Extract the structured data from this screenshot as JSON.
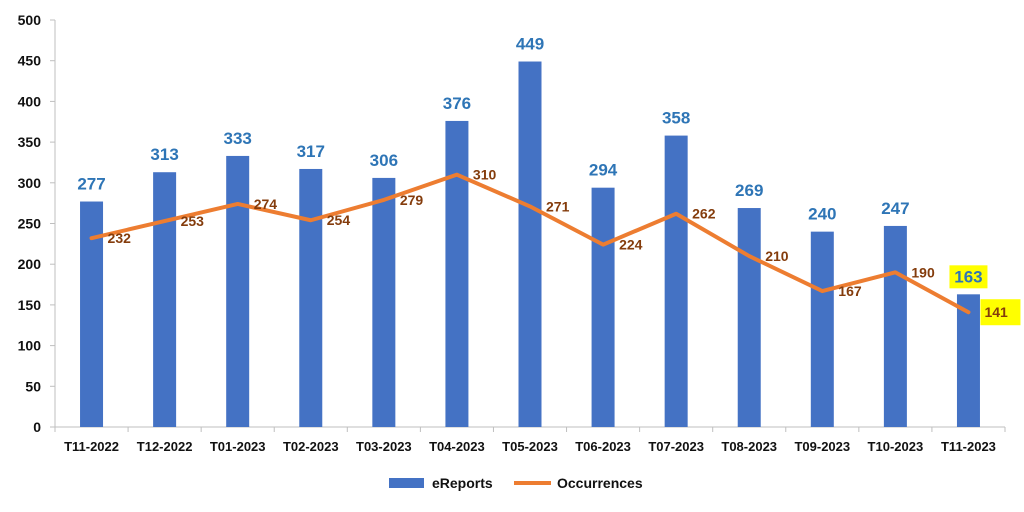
{
  "chart_data": {
    "type": "bar",
    "title": "",
    "xlabel": "",
    "ylabel": "",
    "ylim": [
      0,
      500
    ],
    "yticks": [
      0,
      50,
      100,
      150,
      200,
      250,
      300,
      350,
      400,
      450,
      500
    ],
    "grid": false,
    "legend_position": "bottom",
    "categories": [
      "T11-2022",
      "T12-2022",
      "T01-2023",
      "T02-2023",
      "T03-2023",
      "T04-2023",
      "T05-2023",
      "T06-2023",
      "T07-2023",
      "T08-2023",
      "T09-2023",
      "T10-2023",
      "T11-2023"
    ],
    "series": [
      {
        "name": "eReports",
        "type": "bar",
        "color": "#4472C4",
        "label_color": "#2E75B6",
        "values": [
          277,
          313,
          333,
          317,
          306,
          376,
          449,
          294,
          358,
          269,
          240,
          247,
          163
        ]
      },
      {
        "name": "Occurrences",
        "type": "line",
        "color": "#ED7D31",
        "label_color": "#843C0C",
        "values": [
          232,
          253,
          274,
          254,
          279,
          310,
          271,
          224,
          262,
          210,
          167,
          190,
          141
        ]
      }
    ],
    "highlight_color": "#FFFF00",
    "highlighted_categories": [
      "T11-2023"
    ]
  }
}
